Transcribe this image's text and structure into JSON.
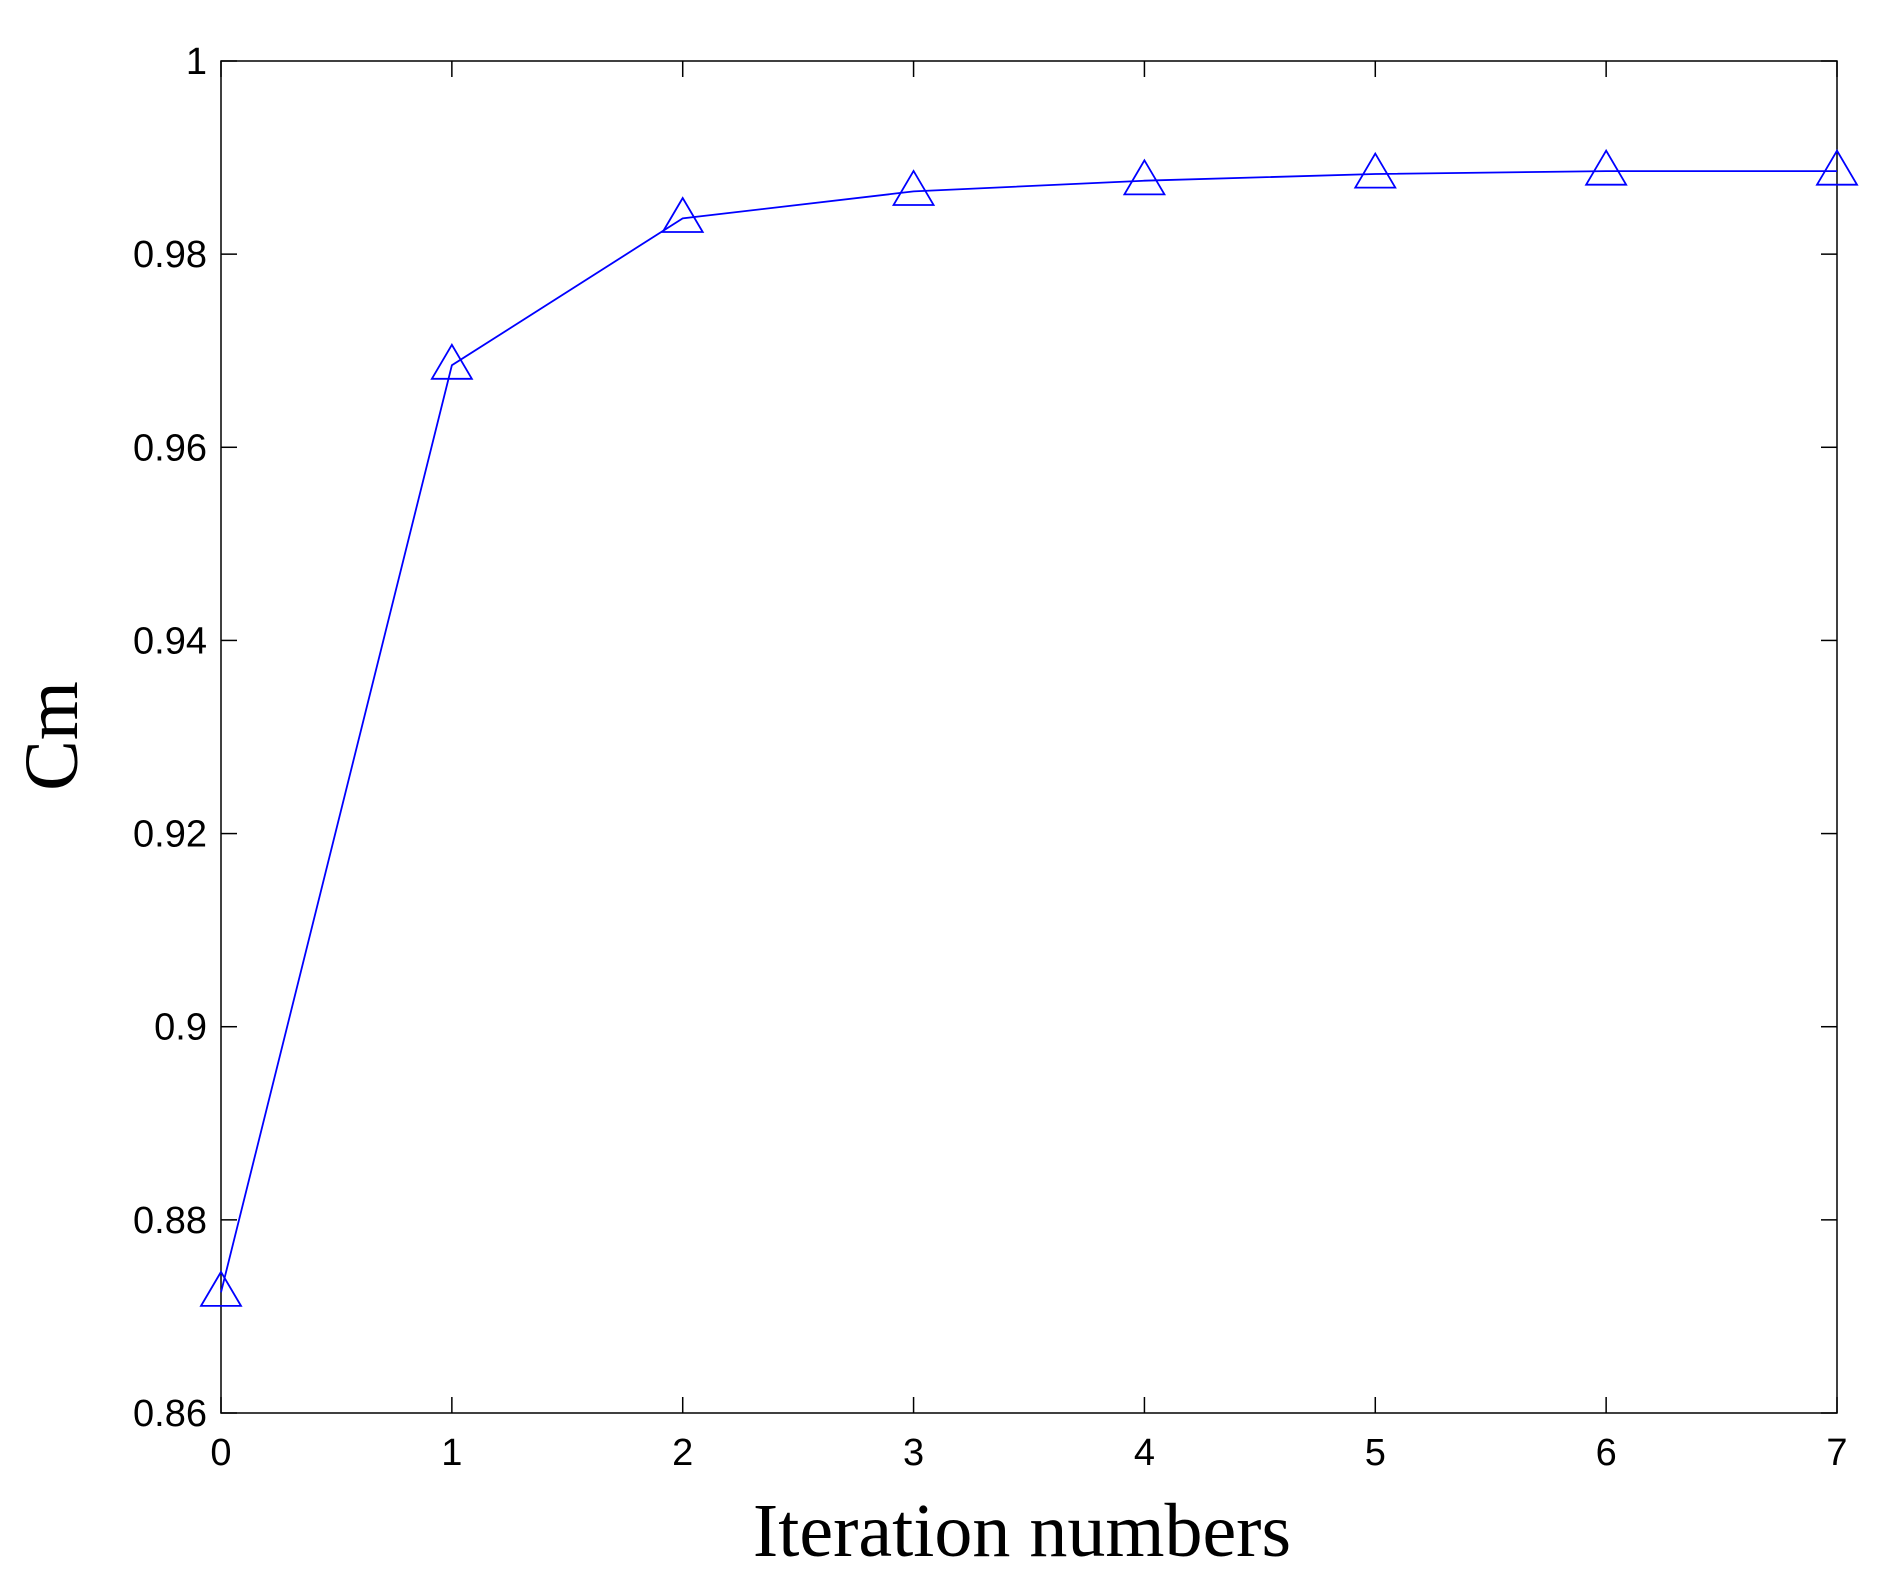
{
  "chart_data": {
    "type": "line",
    "title": "",
    "xlabel": "Iteration numbers",
    "ylabel": "Cm",
    "xlim": [
      0,
      7
    ],
    "ylim": [
      0.86,
      1.0
    ],
    "xticks": [
      0,
      1,
      2,
      3,
      4,
      5,
      6,
      7
    ],
    "yticks": [
      0.86,
      0.88,
      0.9,
      0.92,
      0.94,
      0.96,
      0.98,
      1.0
    ],
    "xtick_labels": [
      "0",
      "1",
      "2",
      "3",
      "4",
      "5",
      "6",
      "7"
    ],
    "ytick_labels": [
      "0.86",
      "0.88",
      "0.9",
      "0.92",
      "0.94",
      "0.96",
      "0.98",
      "1"
    ],
    "grid": false,
    "legend": "none",
    "series": [
      {
        "marker": "triangle",
        "color": "#0000ff",
        "x": [
          0,
          1,
          2,
          3,
          4,
          5,
          6,
          7
        ],
        "y": [
          0.8725,
          0.9685,
          0.9837,
          0.9865,
          0.9876,
          0.9883,
          0.9886,
          0.9886
        ]
      }
    ]
  }
}
